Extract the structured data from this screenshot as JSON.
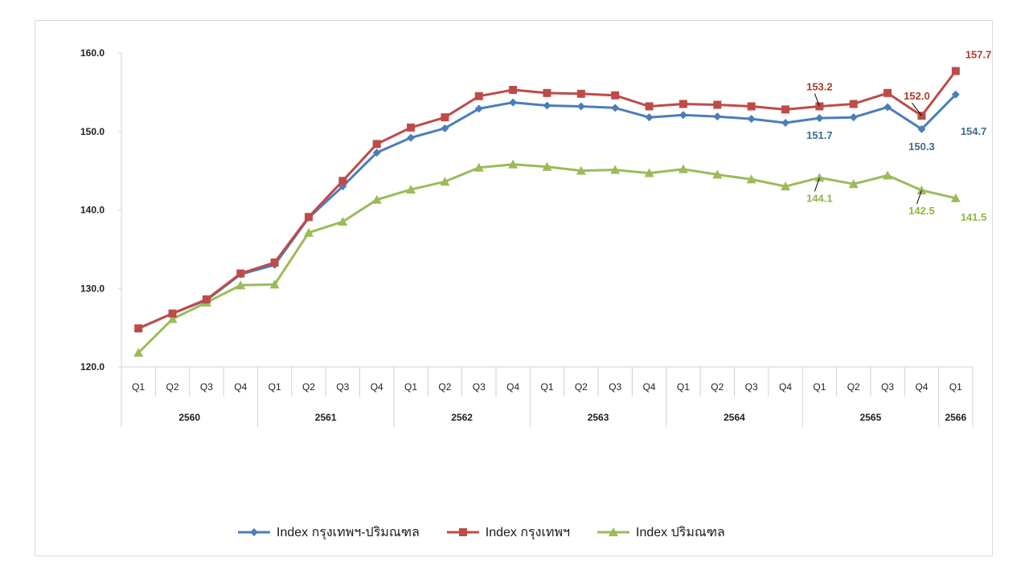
{
  "chart_data": {
    "type": "line",
    "x_quarters": [
      "Q1",
      "Q2",
      "Q3",
      "Q4",
      "Q1",
      "Q2",
      "Q3",
      "Q4",
      "Q1",
      "Q2",
      "Q3",
      "Q4",
      "Q1",
      "Q2",
      "Q3",
      "Q4",
      "Q1",
      "Q2",
      "Q3",
      "Q4",
      "Q1",
      "Q2",
      "Q3",
      "Q4",
      "Q1"
    ],
    "x_years": [
      {
        "label": "2560",
        "count": 4
      },
      {
        "label": "2561",
        "count": 4
      },
      {
        "label": "2562",
        "count": 4
      },
      {
        "label": "2563",
        "count": 4
      },
      {
        "label": "2564",
        "count": 4
      },
      {
        "label": "2565",
        "count": 4
      },
      {
        "label": "2566",
        "count": 1
      }
    ],
    "ylim": [
      120,
      160
    ],
    "yticks": [
      "120.0",
      "130.0",
      "140.0",
      "150.0",
      "160.0"
    ],
    "grid": false,
    "legend_position": "bottom",
    "series": [
      {
        "name": "Index กรุงเทพฯ-ปริมณฑล",
        "color": "#4a7ebb",
        "marker": "diamond",
        "values": [
          124.9,
          126.8,
          128.5,
          131.8,
          133.0,
          139.0,
          143.0,
          147.3,
          149.2,
          150.4,
          152.9,
          153.7,
          153.3,
          153.2,
          153.0,
          151.8,
          152.1,
          151.9,
          151.6,
          151.1,
          151.7,
          151.8,
          153.1,
          150.3,
          154.7
        ]
      },
      {
        "name": "Index กรุงเทพฯ",
        "color": "#be4b48",
        "marker": "square",
        "values": [
          124.9,
          126.8,
          128.6,
          131.9,
          133.3,
          139.1,
          143.7,
          148.4,
          150.5,
          151.8,
          154.5,
          155.3,
          154.9,
          154.8,
          154.6,
          153.2,
          153.5,
          153.4,
          153.2,
          152.8,
          153.2,
          153.5,
          154.9,
          152.0,
          157.7
        ]
      },
      {
        "name": "Index ปริมณฑล",
        "color": "#9bbb59",
        "marker": "triangle",
        "values": [
          121.8,
          126.1,
          128.2,
          130.4,
          130.5,
          137.1,
          138.5,
          141.3,
          142.6,
          143.6,
          145.4,
          145.8,
          145.5,
          145.0,
          145.1,
          144.7,
          145.2,
          144.5,
          143.9,
          143.0,
          144.1,
          143.3,
          144.4,
          142.5,
          141.5
        ]
      }
    ],
    "data_labels": [
      {
        "series": 1,
        "index": 20,
        "text": "153.2",
        "position": "above",
        "leader": true
      },
      {
        "series": 1,
        "index": 23,
        "text": "152.0",
        "position": "above",
        "leader": true
      },
      {
        "series": 1,
        "index": 24,
        "text": "157.7",
        "position": "above-right",
        "leader": false
      },
      {
        "series": 0,
        "index": 20,
        "text": "151.7",
        "position": "below",
        "leader": false
      },
      {
        "series": 0,
        "index": 23,
        "text": "150.3",
        "position": "below",
        "leader": false
      },
      {
        "series": 0,
        "index": 24,
        "text": "154.7",
        "position": "below-right",
        "leader": false
      },
      {
        "series": 2,
        "index": 20,
        "text": "144.1",
        "position": "below",
        "leader": true
      },
      {
        "series": 2,
        "index": 23,
        "text": "142.5",
        "position": "below",
        "leader": true
      },
      {
        "series": 2,
        "index": 24,
        "text": "141.5",
        "position": "below-right",
        "leader": false
      }
    ]
  }
}
